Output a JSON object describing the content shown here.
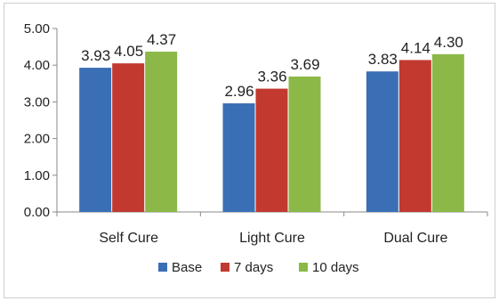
{
  "chart_data": {
    "type": "bar",
    "categories": [
      "Self Cure",
      "Light Cure",
      "Dual Cure"
    ],
    "series": [
      {
        "name": "Base",
        "values": [
          3.93,
          2.96,
          3.83
        ],
        "color": "#3a6fb5",
        "labels": [
          "3.93",
          "2.96",
          "3.83"
        ]
      },
      {
        "name": "7 days",
        "values": [
          4.05,
          3.36,
          4.14
        ],
        "color": "#c1392f",
        "labels": [
          "4.05",
          "3.36",
          "4.14"
        ]
      },
      {
        "name": "10 days",
        "values": [
          4.37,
          3.69,
          4.3
        ],
        "color": "#8cb848",
        "labels": [
          "4.37",
          "3.69",
          "4.30"
        ]
      }
    ],
    "yticks": [
      "0.00",
      "1.00",
      "2.00",
      "3.00",
      "4.00",
      "5.00"
    ],
    "ylim": [
      0,
      5
    ],
    "legend_position": "bottom",
    "grid": false
  }
}
